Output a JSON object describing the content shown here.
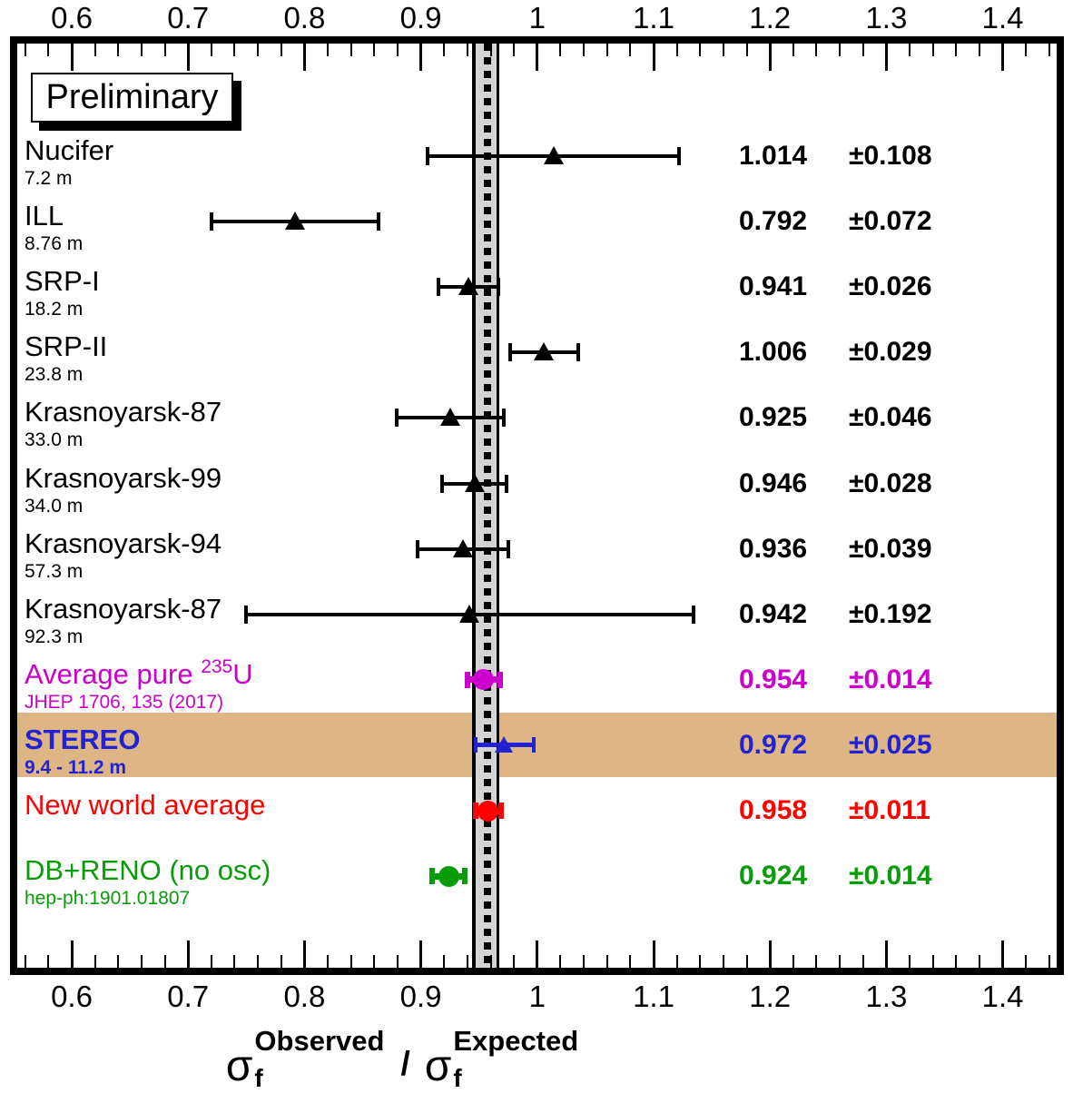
{
  "preliminary": "Preliminary",
  "axis": {
    "tick_labels": [
      "0.6",
      "0.7",
      "0.8",
      "0.9",
      "1",
      "1.1",
      "1.2",
      "1.3",
      "1.4"
    ],
    "tick_values": [
      0.6,
      0.7,
      0.8,
      0.9,
      1.0,
      1.1,
      1.2,
      1.3,
      1.4
    ],
    "minor_tick_step": 0.02,
    "range_min": 0.553,
    "range_max": 1.446,
    "title": {
      "sigma": "σ",
      "sub": "f",
      "sup_left": "Observed",
      "divider": "/",
      "sup_right": "Expected"
    }
  },
  "reference_band": {
    "low": 0.945,
    "high": 0.969,
    "center_line": 0.957,
    "fill": "#d4d4d4",
    "line_color": "#000000"
  },
  "highlight_band": {
    "color": "#deb686",
    "applies_to": "STEREO"
  },
  "colors": {
    "black": "#000000",
    "magenta": "#cc00cc",
    "blue": "#2222d2",
    "red": "#ff0000",
    "green": "#089c08",
    "tan": "#deb686",
    "gray_band": "#d4d4d4"
  },
  "experiments": [
    {
      "name": "Nucifer",
      "sup": "",
      "tail": "",
      "sub": "7.2 m",
      "value": 1.014,
      "error": 0.108,
      "value_label": "1.014",
      "error_label": "±0.108",
      "color": "#000000",
      "marker": "triangle",
      "style": "thin",
      "bold": false
    },
    {
      "name": "ILL",
      "sup": "",
      "tail": "",
      "sub": "8.76 m",
      "value": 0.792,
      "error": 0.072,
      "value_label": "0.792",
      "error_label": "±0.072",
      "color": "#000000",
      "marker": "triangle",
      "style": "thin",
      "bold": false
    },
    {
      "name": "SRP-I",
      "sup": "",
      "tail": "",
      "sub": "18.2 m",
      "value": 0.941,
      "error": 0.026,
      "value_label": "0.941",
      "error_label": "±0.026",
      "color": "#000000",
      "marker": "triangle",
      "style": "thin",
      "bold": false
    },
    {
      "name": "SRP-II",
      "sup": "",
      "tail": "",
      "sub": "23.8 m",
      "value": 1.006,
      "error": 0.029,
      "value_label": "1.006",
      "error_label": "±0.029",
      "color": "#000000",
      "marker": "triangle",
      "style": "thin",
      "bold": false
    },
    {
      "name": "Krasnoyarsk-87",
      "sup": "",
      "tail": "",
      "sub": "33.0 m",
      "value": 0.925,
      "error": 0.046,
      "value_label": "0.925",
      "error_label": "±0.046",
      "color": "#000000",
      "marker": "triangle",
      "style": "thin",
      "bold": false
    },
    {
      "name": "Krasnoyarsk-99",
      "sup": "",
      "tail": "",
      "sub": "34.0 m",
      "value": 0.946,
      "error": 0.028,
      "value_label": "0.946",
      "error_label": "±0.028",
      "color": "#000000",
      "marker": "triangle",
      "style": "thin",
      "bold": false
    },
    {
      "name": "Krasnoyarsk-94",
      "sup": "",
      "tail": "",
      "sub": "57.3 m",
      "value": 0.936,
      "error": 0.039,
      "value_label": "0.936",
      "error_label": "±0.039",
      "color": "#000000",
      "marker": "triangle",
      "style": "thin",
      "bold": false
    },
    {
      "name": "Krasnoyarsk-87",
      "sup": "",
      "tail": "",
      "sub": "92.3 m",
      "value": 0.942,
      "error": 0.192,
      "value_label": "0.942",
      "error_label": "±0.192",
      "color": "#000000",
      "marker": "triangle",
      "style": "thin",
      "bold": false
    },
    {
      "name": "Average pure ",
      "sup": "235",
      "tail": "U",
      "sub": "JHEP 1706, 135 (2017)",
      "value": 0.954,
      "error": 0.014,
      "value_label": "0.954",
      "error_label": "±0.014",
      "color": "#cc00cc",
      "marker": "circle",
      "style": "thick",
      "bold": false
    },
    {
      "name": "STEREO",
      "sup": "",
      "tail": "",
      "sub": "9.4 - 11.2 m",
      "value": 0.972,
      "error": 0.025,
      "value_label": "0.972",
      "error_label": "±0.025",
      "color": "#2222d2",
      "marker": "triangle",
      "style": "medium",
      "bold": true
    },
    {
      "name": "New world average",
      "sup": "",
      "tail": "",
      "sub": "",
      "value": 0.958,
      "error": 0.011,
      "value_label": "0.958",
      "error_label": "±0.011",
      "color": "#ff0000",
      "marker": "circle",
      "style": "thick",
      "bold": false
    },
    {
      "name": "DB+RENO (no osc)",
      "sup": "",
      "tail": "",
      "sub": "hep-ph:1901.01807",
      "value": 0.924,
      "error": 0.014,
      "value_label": "0.924",
      "error_label": "±0.014",
      "color": "#089c08",
      "marker": "circle",
      "style": "thick",
      "bold": false
    }
  ],
  "chart_data": {
    "type": "scatter",
    "subtype": "horizontal-errorbar-summary",
    "title": "",
    "xlabel": "sigma_f^Observed / sigma_f^Expected",
    "ylabel": "",
    "xlim": [
      0.553,
      1.446
    ],
    "grid": false,
    "categories": [
      "Nucifer (7.2 m)",
      "ILL (8.76 m)",
      "SRP-I (18.2 m)",
      "SRP-II (23.8 m)",
      "Krasnoyarsk-87 (33.0 m)",
      "Krasnoyarsk-99 (34.0 m)",
      "Krasnoyarsk-94 (57.3 m)",
      "Krasnoyarsk-87 (92.3 m)",
      "Average pure 235U (JHEP 1706, 135 (2017))",
      "STEREO (9.4 - 11.2 m)",
      "New world average",
      "DB+RENO (no osc) (hep-ph:1901.01807)"
    ],
    "values": [
      1.014,
      0.792,
      0.941,
      1.006,
      0.925,
      0.946,
      0.936,
      0.942,
      0.954,
      0.972,
      0.958,
      0.924
    ],
    "errors": [
      0.108,
      0.072,
      0.026,
      0.029,
      0.046,
      0.028,
      0.039,
      0.192,
      0.014,
      0.025,
      0.011,
      0.014
    ],
    "series_colors": [
      "#000000",
      "#000000",
      "#000000",
      "#000000",
      "#000000",
      "#000000",
      "#000000",
      "#000000",
      "#cc00cc",
      "#2222d2",
      "#ff0000",
      "#089c08"
    ],
    "reference_band": {
      "center": 0.957,
      "low": 0.945,
      "high": 0.969
    },
    "annotations": [
      "Preliminary"
    ]
  }
}
